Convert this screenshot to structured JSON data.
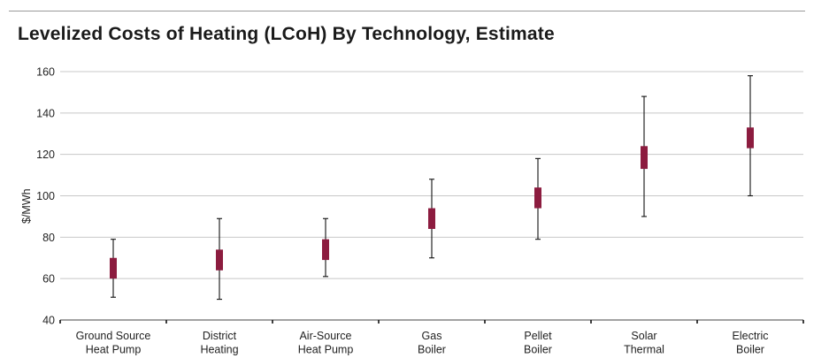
{
  "chart_data": {
    "type": "box",
    "title": "Levelized Costs of Heating (LCoH) By Technology, Estimate",
    "xlabel": "",
    "ylabel": "$/MWh",
    "ylim": [
      40,
      160
    ],
    "yticks": [
      40,
      60,
      80,
      100,
      120,
      140,
      160
    ],
    "grid": true,
    "categories": [
      [
        "Ground Source",
        "Heat Pump"
      ],
      [
        "District",
        "Heating"
      ],
      [
        "Air-Source",
        "Heat Pump"
      ],
      [
        "Gas",
        "Boiler"
      ],
      [
        "Pellet",
        "Boiler"
      ],
      [
        "Solar",
        "Thermal"
      ],
      [
        "Electric",
        "Boiler"
      ]
    ],
    "series": [
      {
        "low": [
          51,
          50,
          61,
          70,
          79,
          90,
          100
        ],
        "q1": [
          60,
          64,
          69,
          84,
          94,
          113,
          123
        ],
        "q3": [
          70,
          74,
          79,
          94,
          104,
          124,
          133
        ],
        "high": [
          79,
          89,
          89,
          108,
          118,
          148,
          158
        ]
      }
    ],
    "colors": {
      "box": "#8c1c3f",
      "whisker": "#111111",
      "grid": "#c8c8c8",
      "axis": "#444444",
      "rule": "#9a9a9a"
    }
  }
}
